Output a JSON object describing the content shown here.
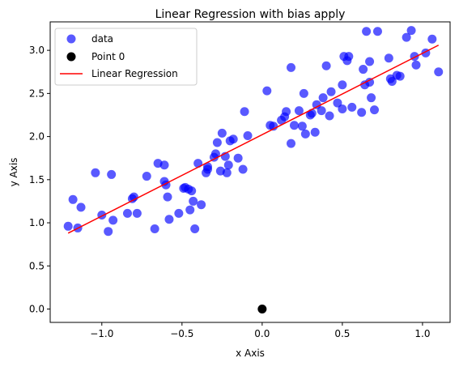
{
  "chart_data": {
    "type": "scatter",
    "title": "Linear Regression with bias apply",
    "xlabel": "x Axis",
    "ylabel": "y Axis",
    "xlim": [
      -1.322,
      1.172
    ],
    "ylim": [
      -0.155,
      3.33
    ],
    "xticks": [
      -1.0,
      -0.5,
      0.0,
      0.5,
      1.0
    ],
    "xtick_labels": [
      "−1.0",
      "−0.5",
      "0.0",
      "0.5",
      "1.0"
    ],
    "yticks": [
      0.0,
      0.5,
      1.0,
      1.5,
      2.0,
      2.5,
      3.0
    ],
    "ytick_labels": [
      "0.0",
      "0.5",
      "1.0",
      "1.5",
      "2.0",
      "2.5",
      "3.0"
    ],
    "grid": false,
    "legend": {
      "position": "top-left",
      "entries": [
        "data",
        "Point 0",
        "Linear Regression"
      ]
    },
    "series": [
      {
        "name": "data",
        "kind": "scatter",
        "color": "#0000ff",
        "alpha": 0.65,
        "points": [
          [
            -1.21,
            0.96
          ],
          [
            -1.18,
            1.27
          ],
          [
            -1.15,
            0.94
          ],
          [
            -1.13,
            1.18
          ],
          [
            -1.04,
            1.58
          ],
          [
            -1.0,
            1.09
          ],
          [
            -0.96,
            0.9
          ],
          [
            -0.94,
            1.56
          ],
          [
            -0.93,
            1.03
          ],
          [
            -0.84,
            1.11
          ],
          [
            -0.81,
            1.28
          ],
          [
            -0.8,
            1.3
          ],
          [
            -0.78,
            1.11
          ],
          [
            -0.72,
            1.54
          ],
          [
            -0.67,
            0.93
          ],
          [
            -0.65,
            1.69
          ],
          [
            -0.61,
            1.67
          ],
          [
            -0.61,
            1.48
          ],
          [
            -0.6,
            1.44
          ],
          [
            -0.59,
            1.3
          ],
          [
            -0.58,
            1.04
          ],
          [
            -0.52,
            1.11
          ],
          [
            -0.49,
            1.4
          ],
          [
            -0.48,
            1.41
          ],
          [
            -0.46,
            1.39
          ],
          [
            -0.45,
            1.15
          ],
          [
            -0.44,
            1.37
          ],
          [
            -0.43,
            1.25
          ],
          [
            -0.42,
            0.93
          ],
          [
            -0.4,
            1.69
          ],
          [
            -0.38,
            1.21
          ],
          [
            -0.35,
            1.58
          ],
          [
            -0.34,
            1.65
          ],
          [
            -0.34,
            1.62
          ],
          [
            -0.3,
            1.76
          ],
          [
            -0.29,
            1.8
          ],
          [
            -0.28,
            1.93
          ],
          [
            -0.26,
            1.6
          ],
          [
            -0.25,
            2.04
          ],
          [
            -0.23,
            1.77
          ],
          [
            -0.22,
            1.58
          ],
          [
            -0.21,
            1.67
          ],
          [
            -0.2,
            1.95
          ],
          [
            -0.18,
            1.97
          ],
          [
            -0.15,
            1.75
          ],
          [
            -0.12,
            1.62
          ],
          [
            -0.11,
            2.29
          ],
          [
            -0.09,
            2.01
          ],
          [
            0.03,
            2.53
          ],
          [
            0.05,
            2.13
          ],
          [
            0.07,
            2.12
          ],
          [
            0.12,
            2.19
          ],
          [
            0.14,
            2.23
          ],
          [
            0.15,
            2.29
          ],
          [
            0.18,
            2.8
          ],
          [
            0.18,
            1.92
          ],
          [
            0.2,
            2.13
          ],
          [
            0.23,
            2.3
          ],
          [
            0.25,
            2.12
          ],
          [
            0.26,
            2.5
          ],
          [
            0.27,
            2.03
          ],
          [
            0.3,
            2.25
          ],
          [
            0.31,
            2.27
          ],
          [
            0.33,
            2.05
          ],
          [
            0.34,
            2.37
          ],
          [
            0.37,
            2.3
          ],
          [
            0.38,
            2.45
          ],
          [
            0.4,
            2.82
          ],
          [
            0.42,
            2.24
          ],
          [
            0.43,
            2.52
          ],
          [
            0.47,
            2.39
          ],
          [
            0.5,
            2.32
          ],
          [
            0.5,
            2.6
          ],
          [
            0.51,
            2.93
          ],
          [
            0.53,
            2.88
          ],
          [
            0.54,
            2.93
          ],
          [
            0.56,
            2.34
          ],
          [
            0.62,
            2.28
          ],
          [
            0.63,
            2.78
          ],
          [
            0.64,
            2.6
          ],
          [
            0.65,
            3.22
          ],
          [
            0.67,
            2.87
          ],
          [
            0.67,
            2.63
          ],
          [
            0.68,
            2.45
          ],
          [
            0.7,
            2.31
          ],
          [
            0.72,
            3.22
          ],
          [
            0.79,
            2.91
          ],
          [
            0.8,
            2.67
          ],
          [
            0.81,
            2.64
          ],
          [
            0.84,
            2.71
          ],
          [
            0.86,
            2.7
          ],
          [
            0.9,
            3.15
          ],
          [
            0.93,
            3.23
          ],
          [
            0.95,
            2.93
          ],
          [
            0.96,
            2.83
          ],
          [
            1.02,
            2.97
          ],
          [
            1.06,
            3.13
          ],
          [
            1.1,
            2.75
          ]
        ]
      },
      {
        "name": "Point 0",
        "kind": "scatter",
        "color": "#000000",
        "points": [
          [
            0.0,
            0.0
          ]
        ]
      },
      {
        "name": "Linear Regression",
        "kind": "line",
        "color": "#ff0000",
        "points": [
          [
            -1.21,
            0.88
          ],
          [
            1.1,
            3.06
          ]
        ]
      }
    ]
  }
}
